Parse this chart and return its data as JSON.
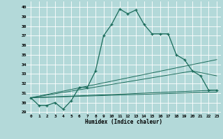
{
  "xlabel": "Humidex (Indice chaleur)",
  "background_color": "#b3d9d9",
  "grid_color": "#ffffff",
  "line_color": "#1a6b5a",
  "xlim": [
    -0.5,
    23.5
  ],
  "ylim": [
    28.8,
    40.6
  ],
  "yticks": [
    29,
    30,
    31,
    32,
    33,
    34,
    35,
    36,
    37,
    38,
    39,
    40
  ],
  "xticks": [
    0,
    1,
    2,
    3,
    4,
    5,
    6,
    7,
    8,
    9,
    10,
    11,
    12,
    13,
    14,
    15,
    16,
    17,
    18,
    19,
    20,
    21,
    22,
    23
  ],
  "line1_x": [
    0,
    1,
    2,
    3,
    4,
    5,
    6,
    7,
    8,
    9,
    10,
    11,
    12,
    13,
    14,
    15,
    16,
    17,
    18,
    19,
    20,
    21,
    22,
    23
  ],
  "line1_y": [
    30.5,
    29.7,
    29.7,
    30.0,
    29.3,
    30.2,
    31.6,
    31.6,
    33.3,
    37.0,
    38.2,
    39.8,
    39.3,
    39.7,
    38.2,
    37.2,
    37.2,
    37.2,
    35.0,
    34.5,
    33.3,
    32.8,
    31.3,
    31.3
  ],
  "line2_x": [
    0,
    23
  ],
  "line2_y": [
    30.5,
    34.5
  ],
  "line3_x": [
    0,
    20,
    23
  ],
  "line3_y": [
    30.5,
    33.3,
    32.8
  ],
  "line4_x": [
    0,
    23
  ],
  "line4_y": [
    30.5,
    31.3
  ],
  "line5_x": [
    0,
    23
  ],
  "line5_y": [
    30.5,
    31.1
  ]
}
